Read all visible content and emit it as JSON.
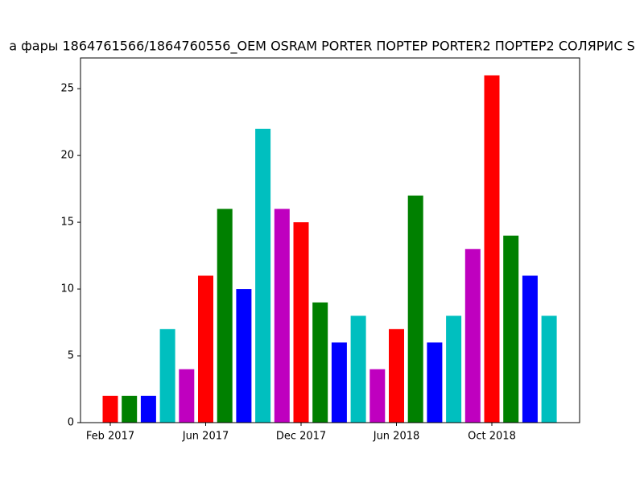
{
  "chart_data": {
    "type": "bar",
    "title": "а фары 1864761566/1864760556_OEM OSRAM PORTER ПОРТЕР PORTER2 ПОРТЕР2 СОЛЯРИС S",
    "categories": [
      "Feb 2017",
      null,
      null,
      null,
      null,
      "Jun 2017",
      null,
      null,
      null,
      null,
      "Dec 2017",
      null,
      null,
      null,
      null,
      "Jun 2018",
      null,
      null,
      null,
      null,
      "Oct 2018",
      null,
      null,
      null
    ],
    "values": [
      2,
      2,
      2,
      7,
      4,
      11,
      16,
      10,
      22,
      16,
      15,
      9,
      6,
      8,
      4,
      7,
      17,
      6,
      8,
      13,
      26,
      14,
      11,
      8
    ],
    "colors": [
      "#ff0000",
      "#008000",
      "#0000ff",
      "#00bfbf",
      "#bf00bf"
    ],
    "ylim": [
      0,
      27.3
    ],
    "yticks": [
      0,
      5,
      10,
      15,
      20,
      25
    ],
    "grid": false
  }
}
